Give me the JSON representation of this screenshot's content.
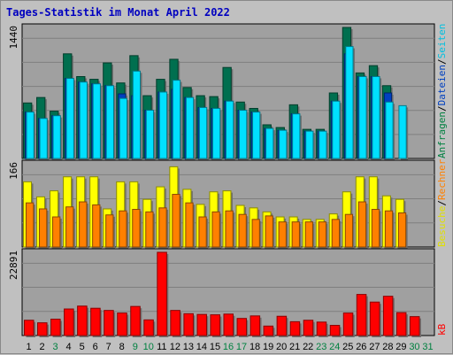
{
  "title": "Tages-Statistik im Monat April 2022",
  "colors": {
    "background": "#c0c0c0",
    "panel": "#a0a0a0",
    "grid": "#7f7f7f",
    "anfragen": "#006f4f",
    "dateien": "#0040c0",
    "seiten": "#00e0ff",
    "besuche": "#ffff00",
    "rechner": "#ff8000",
    "kb": "#ff0000",
    "title": "#0000c0",
    "weekday_label": "#000000",
    "weekend_label": "#008040"
  },
  "right_labels": {
    "panel1": [
      {
        "text": "Anfragen",
        "color": "#008040"
      },
      {
        "text": "/",
        "color": "#000000"
      },
      {
        "text": "Dateien",
        "color": "#0040c0"
      },
      {
        "text": "/",
        "color": "#000000"
      },
      {
        "text": "Seiten",
        "color": "#00c0e0"
      }
    ],
    "panel2": [
      {
        "text": "Besuche",
        "color": "#e0e000"
      },
      {
        "text": "/",
        "color": "#000000"
      },
      {
        "text": "Rechner",
        "color": "#ff8000"
      }
    ],
    "panel3": [
      {
        "text": "kB",
        "color": "#ff0000"
      }
    ]
  },
  "chart_data": {
    "type": "bar",
    "title": "Tages-Statistik im Monat April 2022",
    "x": [
      "1",
      "2",
      "3",
      "4",
      "5",
      "6",
      "7",
      "8",
      "9",
      "10",
      "11",
      "12",
      "13",
      "14",
      "15",
      "16",
      "17",
      "18",
      "19",
      "20",
      "21",
      "22",
      "23",
      "24",
      "25",
      "26",
      "27",
      "28",
      "29",
      "30",
      "31"
    ],
    "weekend_days": [
      3,
      9,
      10,
      16,
      17,
      23,
      24,
      30,
      31
    ],
    "panels": [
      {
        "name": "anfragen_dateien_seiten",
        "ymax_label": "1440",
        "ylim": [
          0,
          1440
        ],
        "series": [
          {
            "name": "Anfragen",
            "values": [
              610,
              670,
              520,
              1150,
              900,
              870,
              1050,
              830,
              1130,
              690,
              870,
              1090,
              780,
              690,
              680,
              1000,
              620,
              550,
              370,
              340,
              590,
              320,
              320,
              720,
              1440,
              940,
              1020,
              800,
              0,
              0,
              0
            ]
          },
          {
            "name": "Dateien",
            "values": [
              510,
              440,
              470,
              880,
              840,
              820,
              800,
              710,
              690,
              530,
              730,
              760,
              670,
              560,
              550,
              630,
              530,
              510,
              330,
              310,
              490,
              300,
              300,
              630,
              1150,
              900,
              900,
              720,
              0,
              0,
              0
            ]
          },
          {
            "name": "Seiten",
            "values": [
              510,
              440,
              470,
              880,
              840,
              820,
              800,
              660,
              960,
              530,
              730,
              860,
              670,
              560,
              550,
              630,
              530,
              510,
              330,
              310,
              490,
              300,
              300,
              630,
              1230,
              900,
              900,
              620,
              580,
              0,
              0
            ]
          }
        ]
      },
      {
        "name": "besuche_rechner",
        "ymax_label": "166",
        "ylim": [
          0,
          166
        ],
        "series": [
          {
            "name": "Besuche",
            "values": [
              130,
              100,
              112,
              140,
              140,
              140,
              76,
              130,
              130,
              95,
              120,
              160,
              115,
              85,
              110,
              112,
              83,
              78,
              70,
              60,
              60,
              55,
              55,
              66,
              110,
              140,
              140,
              102,
              95,
              0,
              0
            ]
          },
          {
            "name": "Rechner",
            "values": [
              88,
              76,
              60,
              80,
              90,
              84,
              64,
              72,
              75,
              70,
              78,
              105,
              88,
              60,
              70,
              72,
              65,
              55,
              62,
              50,
              50,
              50,
              50,
              55,
              65,
              90,
              75,
              72,
              68,
              0,
              0
            ]
          }
        ]
      },
      {
        "name": "kb",
        "ymax_label": "22891",
        "ylim": [
          0,
          22891
        ],
        "series": [
          {
            "name": "kB",
            "values": [
              4200,
              3500,
              4500,
              7300,
              8100,
              7500,
              6900,
              6200,
              8000,
              4300,
              22891,
              6900,
              6000,
              5800,
              5700,
              5900,
              4700,
              5400,
              2600,
              5300,
              3800,
              4200,
              3700,
              2800,
              6200,
              11300,
              9200,
              10800,
              6300,
              5200,
              0
            ]
          }
        ]
      }
    ]
  }
}
